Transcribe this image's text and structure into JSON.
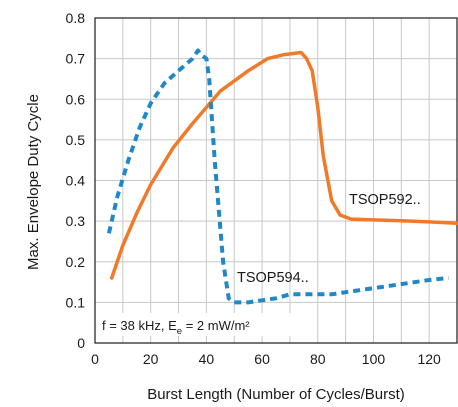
{
  "chart_data": {
    "type": "line",
    "xlabel": "Burst Length (Number of Cycles/Burst)",
    "ylabel": "Max. Envelope Duty Cycle",
    "xlim": [
      0,
      130
    ],
    "ylim": [
      0,
      0.8
    ],
    "xticks": [
      0,
      20,
      40,
      60,
      80,
      100,
      120
    ],
    "yticks": [
      0,
      0.1,
      0.2,
      0.3,
      0.4,
      0.5,
      0.6,
      0.7,
      0.8
    ],
    "grid": true,
    "series": [
      {
        "name": "TSOP592..",
        "color": "#f07a2a",
        "style": "solid",
        "x": [
          6,
          10,
          15,
          20,
          28,
          35,
          45,
          55,
          62,
          68,
          74,
          76,
          78,
          80,
          82,
          85,
          88,
          92,
          100,
          110,
          120,
          130
        ],
        "y": [
          0.16,
          0.24,
          0.32,
          0.39,
          0.48,
          0.54,
          0.62,
          0.67,
          0.7,
          0.71,
          0.715,
          0.7,
          0.67,
          0.58,
          0.46,
          0.35,
          0.315,
          0.305,
          0.303,
          0.301,
          0.298,
          0.295
        ]
      },
      {
        "name": "TSOP594..",
        "color": "#1e88c8",
        "style": "dashed",
        "x": [
          5,
          8,
          12,
          16,
          20,
          25,
          30,
          35,
          37,
          38,
          40,
          41,
          43,
          46,
          48,
          50,
          55,
          60,
          65,
          70,
          75,
          80,
          85,
          90,
          100,
          110,
          120,
          127
        ],
        "y": [
          0.27,
          0.36,
          0.45,
          0.53,
          0.59,
          0.64,
          0.67,
          0.7,
          0.72,
          0.71,
          0.7,
          0.65,
          0.45,
          0.2,
          0.11,
          0.1,
          0.1,
          0.105,
          0.11,
          0.12,
          0.12,
          0.12,
          0.12,
          0.125,
          0.135,
          0.145,
          0.155,
          0.16
        ]
      }
    ],
    "annotations": {
      "label_592": "TSOP592..",
      "label_594": "TSOP594..",
      "cond_main": "f = 38 kHz, E",
      "cond_sub": "e",
      "cond_tail": " = 2 mW/m²"
    }
  }
}
